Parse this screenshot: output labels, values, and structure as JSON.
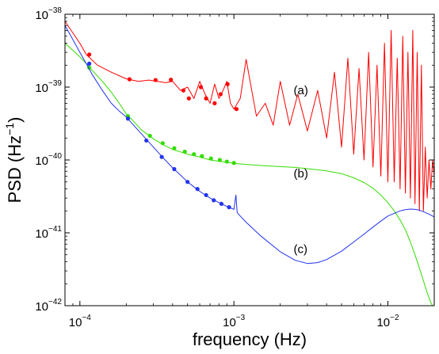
{
  "chart_data": {
    "type": "line",
    "title": "",
    "xlabel": "frequency (Hz)",
    "ylabel": "PSD (Hz⁻¹)",
    "ylabel_base": "PSD (Hz",
    "ylabel_sup": "−1",
    "ylabel_close": ")",
    "x_scale": "log",
    "y_scale": "log",
    "xlim": [
      8e-05,
      0.02
    ],
    "ylim": [
      1e-42,
      1e-38
    ],
    "grid": false,
    "x_ticks": [
      {
        "value": 0.0001,
        "base": "10",
        "exp": "−4"
      },
      {
        "value": 0.001,
        "base": "10",
        "exp": "−3"
      },
      {
        "value": 0.01,
        "base": "10",
        "exp": "−2"
      }
    ],
    "y_ticks": [
      {
        "value": 1e-42,
        "base": "10",
        "exp": "−42"
      },
      {
        "value": 1e-41,
        "base": "10",
        "exp": "−41"
      },
      {
        "value": 1e-40,
        "base": "10",
        "exp": "−40"
      },
      {
        "value": 1e-39,
        "base": "10",
        "exp": "−39"
      },
      {
        "value": 1e-38,
        "base": "10",
        "exp": "−38"
      }
    ],
    "series": [
      {
        "name": "(a)",
        "color": "#ff0000",
        "label_at": [
          0.0012,
          9e-40
        ],
        "x": [
          8e-05,
          0.0001,
          0.00011,
          0.00013,
          0.00016,
          0.0002,
          0.00024,
          0.00028,
          0.00032,
          0.00036,
          0.0004,
          0.00045,
          0.0005,
          0.00055,
          0.0006,
          0.00065,
          0.0007,
          0.00075,
          0.0008,
          0.00085,
          0.0009,
          0.00095,
          0.001,
          0.0011,
          0.0012,
          0.0014,
          0.0016,
          0.0018,
          0.002,
          0.0023,
          0.0026,
          0.003,
          0.0035,
          0.004,
          0.0045,
          0.005,
          0.0055,
          0.006,
          0.0065,
          0.007,
          0.0075,
          0.008,
          0.0085,
          0.009,
          0.0095,
          0.01,
          0.0105,
          0.011,
          0.0115,
          0.012,
          0.0125,
          0.013,
          0.0135,
          0.014,
          0.0145,
          0.015,
          0.0155,
          0.016,
          0.0165,
          0.017,
          0.0175,
          0.018,
          0.0185,
          0.019,
          0.0195,
          0.02
        ],
        "y": [
          8e-39,
          4e-39,
          2.8e-39,
          2e-39,
          1.6e-39,
          1.3e-39,
          1.2e-39,
          1.25e-39,
          1.2e-39,
          1.15e-39,
          1.2e-39,
          9e-40,
          1e-39,
          7e-40,
          1.2e-39,
          8e-40,
          6e-40,
          1.1e-39,
          7e-40,
          9e-40,
          1.2e-39,
          6e-40,
          5e-40,
          7e-40,
          2.4e-39,
          4e-40,
          6e-40,
          3e-40,
          1.2e-39,
          3e-40,
          8e-40,
          2.5e-40,
          9e-40,
          2e-40,
          1.6e-39,
          1.5e-40,
          2.5e-39,
          1.2e-40,
          1.8e-39,
          1e-40,
          3e-39,
          8e-41,
          2e-39,
          6e-41,
          4e-39,
          5e-41,
          6e-39,
          5e-41,
          2.5e-39,
          4e-41,
          5e-39,
          3.5e-41,
          3e-39,
          3e-41,
          6e-39,
          2.5e-41,
          3e-39,
          2e-41,
          2e-39,
          2e-41,
          1.5e-40,
          3e-41,
          1e-40,
          4e-41,
          1e-40,
          6e-41
        ],
        "markers_x": [
          0.000115,
          0.00021,
          0.00031,
          0.00039,
          0.00047,
          0.00051,
          0.00061,
          0.00066,
          0.00075,
          0.00082,
          0.00091,
          0.00104
        ],
        "markers_y": [
          2.8e-39,
          1.28e-39,
          1.25e-39,
          1.26e-39,
          9e-40,
          7e-40,
          1e-39,
          7e-40,
          6e-40,
          8e-40,
          1.1e-39,
          5e-40
        ]
      },
      {
        "name": "(b)",
        "color": "#33dd00",
        "label_at": [
          0.0012,
          6.5e-41
        ],
        "x": [
          8e-05,
          9e-05,
          0.0001,
          0.00011,
          0.00012,
          0.00014,
          0.00016,
          0.00018,
          0.0002,
          0.00022,
          0.00025,
          0.0003,
          0.00035,
          0.0004,
          0.0005,
          0.0006,
          0.0007,
          0.0008,
          0.0009,
          0.001,
          0.0012,
          0.0015,
          0.002,
          0.0025,
          0.003,
          0.004,
          0.005,
          0.006,
          0.007,
          0.008,
          0.009,
          0.01,
          0.011,
          0.012,
          0.013,
          0.014,
          0.015,
          0.016,
          0.017,
          0.018,
          0.019,
          0.0195
        ],
        "y": [
          4e-39,
          3.2e-39,
          2.6e-39,
          2.1e-39,
          1.7e-39,
          1.2e-39,
          8.5e-40,
          6e-40,
          4.3e-40,
          3.5e-40,
          2.6e-40,
          1.95e-40,
          1.6e-40,
          1.4e-40,
          1.2e-40,
          1.1e-40,
          1e-40,
          9.6e-41,
          9.3e-41,
          9e-41,
          8.7e-41,
          8.4e-41,
          8.1e-41,
          7.9e-41,
          7.6e-41,
          7.1e-41,
          6.5e-41,
          5.7e-41,
          4.9e-41,
          4.1e-41,
          3.3e-41,
          2.6e-41,
          2e-41,
          1.5e-41,
          1.1e-41,
          7.5e-42,
          5e-42,
          3.3e-42,
          2.2e-42,
          1.5e-42,
          1.1e-42,
          1e-42
        ],
        "markers_x": [
          0.000115,
          0.000205,
          0.000285,
          0.000345,
          0.00041,
          0.00048,
          0.00055,
          0.00062,
          0.00071,
          0.00081,
          0.0009,
          0.001
        ],
        "markers_y": [
          1.85e-39,
          4e-40,
          2.15e-40,
          1.7e-40,
          1.45e-40,
          1.3e-40,
          1.2e-40,
          1.13e-40,
          1.05e-40,
          1e-40,
          9.5e-41,
          9.1e-41
        ]
      },
      {
        "name": "(c)",
        "color": "#2233ee",
        "label_at": [
          0.0012,
          6e-42
        ],
        "x": [
          8e-05,
          9e-05,
          0.0001,
          0.00011,
          0.00012,
          0.00014,
          0.00016,
          0.00018,
          0.0002,
          0.00022,
          0.00025,
          0.0003,
          0.00035,
          0.0004,
          0.00045,
          0.0005,
          0.0006,
          0.0007,
          0.0008,
          0.0009,
          0.00095,
          0.001,
          0.00103,
          0.00105,
          0.0011,
          0.0012,
          0.0015,
          0.002,
          0.0025,
          0.003,
          0.0035,
          0.004,
          0.005,
          0.006,
          0.007,
          0.008,
          0.009,
          0.01,
          0.011,
          0.012,
          0.013,
          0.014,
          0.015,
          0.016,
          0.017,
          0.018,
          0.019,
          0.02
        ],
        "y": [
          7e-39,
          4.5e-39,
          3e-39,
          2.1e-39,
          1.5e-39,
          9e-40,
          6e-40,
          4.7e-40,
          3.9e-40,
          3.1e-40,
          2.3e-40,
          1.5e-40,
          1.05e-40,
          7.8e-41,
          6.2e-41,
          5e-41,
          3.7e-41,
          3e-41,
          2.6e-41,
          2.3e-41,
          2.2e-41,
          2.1e-41,
          3.3e-41,
          1.9e-41,
          1.7e-41,
          1.4e-41,
          9e-42,
          5.5e-42,
          4.2e-42,
          3.8e-42,
          3.9e-42,
          4.3e-42,
          5.6e-42,
          7.5e-42,
          9.6e-42,
          1.2e-41,
          1.45e-41,
          1.7e-41,
          1.85e-41,
          2e-41,
          2.08e-41,
          2.12e-41,
          2.1e-41,
          2.05e-41,
          1.95e-41,
          1.85e-41,
          1.75e-41,
          1.65e-41
        ],
        "markers_x": [
          0.000115,
          0.000205,
          0.00027,
          0.00034,
          0.00041,
          0.0005,
          0.00058,
          0.00066,
          0.00074,
          0.00083,
          0.00093
        ],
        "markers_y": [
          2.1e-39,
          3.7e-40,
          1.85e-40,
          1.1e-40,
          7.5e-41,
          5e-41,
          4e-41,
          3.3e-41,
          2.8e-41,
          2.5e-41,
          2.25e-41
        ]
      }
    ]
  }
}
